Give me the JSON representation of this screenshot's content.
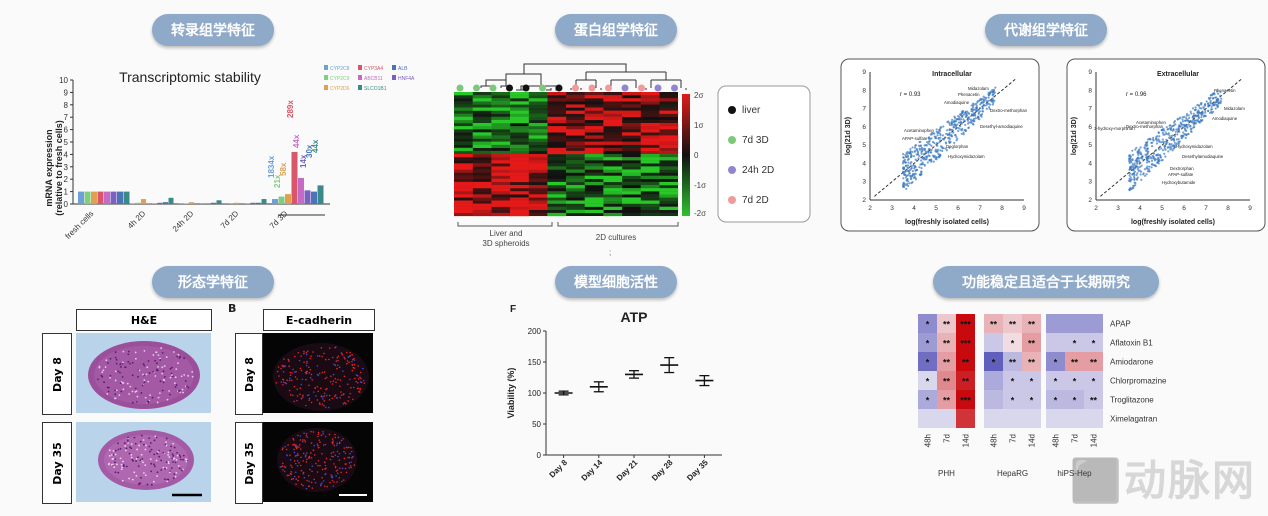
{
  "section_titles": {
    "transcriptomics": "转录组学特征",
    "proteomics": "蛋白组学特征",
    "metabolomics": "代谢组学特征",
    "morphology": "形态学特征",
    "viability": "模型细胞活性",
    "function": "功能稳定且适合于长期研究"
  },
  "colors": {
    "pill": "#8fa9c8"
  },
  "transcript": {
    "title": "Transcriptomic stability",
    "ylabel_line1": "mRNA expression",
    "ylabel_line2": "(relative to fresh cells)",
    "yticks": [
      "0",
      "1",
      "2",
      "3",
      "4",
      "5",
      "6",
      "7",
      "8",
      "9",
      "10"
    ],
    "groups": [
      "fresh cells",
      "4h 2D",
      "24h 2D",
      "7d 2D",
      "7d 3D"
    ],
    "legend": [
      "CYP2C8",
      "CYP3A4",
      "ALB",
      "CYP2C9",
      "ABCB11",
      "HNF4A",
      "CYP2D6",
      "SLCO1B1"
    ],
    "annotations": [
      "1834x",
      "21x",
      "58x",
      "289x",
      "44x",
      "14x",
      "30x",
      "44x"
    ]
  },
  "chart_data": [
    {
      "type": "bar",
      "title": "Transcriptomic stability",
      "xlabel": "",
      "ylabel": "mRNA expression (relative to fresh cells)",
      "ylim": [
        0,
        10
      ],
      "categories": [
        "fresh cells",
        "4h 2D",
        "24h 2D",
        "7d 2D",
        "7d 3D"
      ],
      "series": [
        {
          "name": "CYP2C8",
          "values": [
            1,
            0.05,
            0.02,
            0.01,
            0.4
          ]
        },
        {
          "name": "CYP2C9",
          "values": [
            1,
            0.1,
            0.03,
            0.02,
            0.6
          ]
        },
        {
          "name": "CYP2D6",
          "values": [
            1,
            0.4,
            0.15,
            0.1,
            0.8
          ]
        },
        {
          "name": "CYP3A4",
          "values": [
            1,
            0.02,
            0.01,
            0.01,
            4.2
          ]
        },
        {
          "name": "ABCB11",
          "values": [
            1,
            0.05,
            0.02,
            0.05,
            2.1
          ]
        },
        {
          "name": "SLCO1B1",
          "values": [
            1,
            0.1,
            0.05,
            0.1,
            1.1
          ]
        },
        {
          "name": "ALB",
          "values": [
            1,
            0.15,
            0.1,
            0.1,
            1.0
          ]
        },
        {
          "name": "HNF4A",
          "values": [
            1,
            0.5,
            0.3,
            0.4,
            1.5
          ]
        }
      ]
    },
    {
      "type": "scatter",
      "title": "Intracellular",
      "xlabel": "log(freshly isolated cells)",
      "ylabel": "log(21d 3D)",
      "r": "r = 0.93",
      "xlim": [
        2,
        9
      ],
      "ylim": [
        2,
        9
      ],
      "labels": [
        "Midazolam",
        "Phenacetin",
        "Amodiaquine",
        "Dextro-methorphan",
        "Desethyl-amodiaquine",
        "Acetaminophen",
        "APAP-sulfate",
        "Deglorphan",
        "Hydroxymidazolam"
      ]
    },
    {
      "type": "scatter",
      "title": "Extracellular",
      "xlabel": "log(freshly isolated cells)",
      "ylabel": "log(21d 3D)",
      "r": "r = 0.96",
      "xlim": [
        2,
        9
      ],
      "ylim": [
        2,
        9
      ],
      "labels": [
        "Phenacetin",
        "Midazolam",
        "Amodiaquine",
        "3-hydroxy-morphinan",
        "Dextro-methorphan",
        "Acetaminophen",
        "Hydroxymidazolam",
        "Desethylamodiaquine",
        "Dextrorphan",
        "APAP-sulfate",
        "Hydroxybutamide"
      ]
    },
    {
      "type": "scatter",
      "title": "ATP",
      "xlabel": "",
      "ylabel": "Viability (%)",
      "ylim": [
        0,
        200
      ],
      "yticks": [
        "0",
        "50",
        "100",
        "150",
        "200"
      ],
      "categories": [
        "Day 8",
        "Day 14",
        "Day 21",
        "Day 28",
        "Day 35"
      ],
      "values": [
        100,
        110,
        130,
        145,
        120
      ],
      "errors": [
        3,
        8,
        6,
        12,
        8
      ]
    },
    {
      "type": "heatmap",
      "rows": [
        "APAP",
        "Aflatoxin B1",
        "Amiodarone",
        "Chlorpromazine",
        "Troglitazone",
        "Ximelagatran"
      ],
      "groups": [
        {
          "name": "PHH",
          "cols": [
            "48h",
            "7d",
            "14d"
          ],
          "cells": [
            [
              "*",
              "**",
              "***"
            ],
            [
              "*",
              "**",
              "***"
            ],
            [
              "*",
              "**",
              "**"
            ],
            [
              "*",
              "**",
              "**"
            ],
            [
              "*",
              "**",
              "***"
            ],
            [
              "",
              "",
              ""
            ]
          ],
          "values": [
            [
              -0.6,
              0.1,
              1
            ],
            [
              -0.5,
              0.2,
              1
            ],
            [
              -0.8,
              0.3,
              1
            ],
            [
              -0.1,
              0.4,
              0.9
            ],
            [
              -0.4,
              0.3,
              1
            ],
            [
              -0.1,
              -0.1,
              0.8
            ]
          ]
        },
        {
          "name": "HepaRG",
          "cols": [
            "48h",
            "7d",
            "14d"
          ],
          "cells": [
            [
              "**",
              "**",
              "**"
            ],
            [
              "",
              "*",
              "**"
            ],
            [
              "*",
              "**",
              "**"
            ],
            [
              "",
              "*",
              "*"
            ],
            [
              "",
              "*",
              "*"
            ],
            [
              "",
              "",
              ""
            ]
          ],
          "values": [
            [
              0.2,
              0.1,
              0.2
            ],
            [
              -0.2,
              0,
              0.3
            ],
            [
              -0.9,
              -0.3,
              0.2
            ],
            [
              -0.4,
              -0.2,
              -0.2
            ],
            [
              -0.3,
              -0.2,
              -0.2
            ],
            [
              -0.1,
              -0.1,
              -0.1
            ]
          ]
        },
        {
          "name": "hiPS-Hep",
          "cols": [
            "48h",
            "7d",
            "14d"
          ],
          "cells": [
            [
              "",
              "",
              ""
            ],
            [
              "",
              "*",
              "*"
            ],
            [
              "*",
              "**",
              "**"
            ],
            [
              "*",
              "*",
              "*"
            ],
            [
              "*",
              "*",
              "**"
            ],
            [
              "",
              "",
              ""
            ]
          ],
          "values": [
            [
              -0.5,
              -0.5,
              -0.5
            ],
            [
              -0.2,
              -0.2,
              -0.2
            ],
            [
              -0.6,
              0.3,
              0.3
            ],
            [
              -0.2,
              -0.2,
              -0.2
            ],
            [
              -0.3,
              -0.3,
              -0.2
            ],
            [
              -0.1,
              -0.1,
              -0.1
            ]
          ]
        }
      ]
    }
  ],
  "proteome": {
    "legend": [
      "liver",
      "7d 3D",
      "24h 2D",
      "7d 2D"
    ],
    "scale": [
      "2σ",
      "1σ",
      "0",
      "-1σ",
      "-2σ"
    ],
    "xlabel_left_line1": "Liver and",
    "xlabel_left_line2": "3D spheroids",
    "xlabel_right": "2D cultures",
    "stray_mark": ";"
  },
  "morphology": {
    "he_label": "H&E",
    "ecad_label": "E-cadherin",
    "panel_letter": "B",
    "rows": [
      "Day 8",
      "Day 35"
    ]
  },
  "viability_letter": "F"
}
